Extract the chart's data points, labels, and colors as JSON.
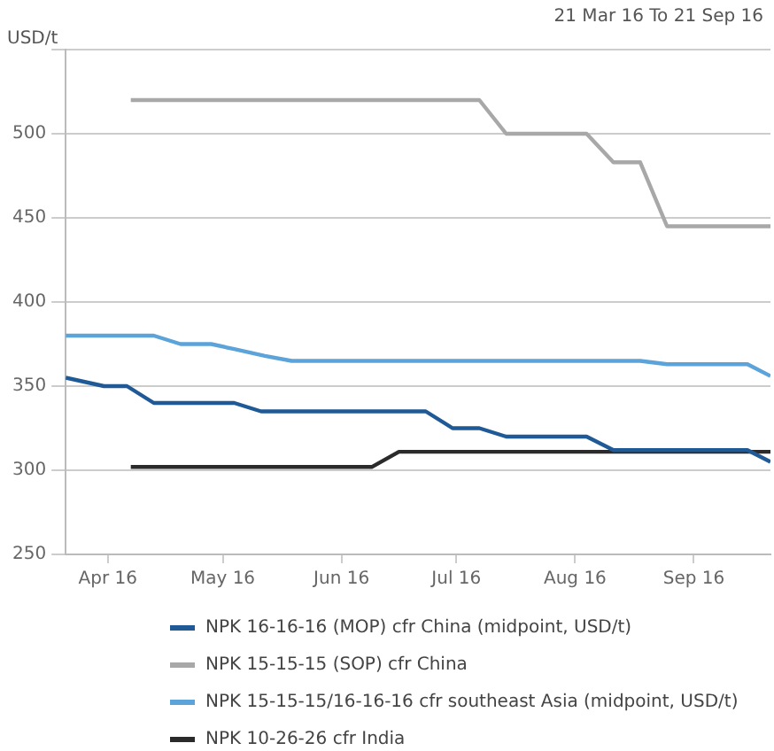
{
  "chart_data": {
    "type": "line",
    "subtitle": "21 Mar 16 To 21 Sep 16",
    "ylabel": "USD/t",
    "xlim": [
      "2016-03-21",
      "2016-09-21"
    ],
    "xticks": [
      {
        "value": "2016-04-01",
        "label": "Apr 16"
      },
      {
        "value": "2016-05-01",
        "label": "May 16"
      },
      {
        "value": "2016-06-01",
        "label": "Jun 16"
      },
      {
        "value": "2016-07-01",
        "label": "Jul 16"
      },
      {
        "value": "2016-08-01",
        "label": "Aug 16"
      },
      {
        "value": "2016-09-01",
        "label": "Sep 16"
      }
    ],
    "ylim": [
      250,
      550
    ],
    "yticks": [
      250,
      300,
      350,
      400,
      450,
      500,
      {
        "value": 550,
        "label": null
      }
    ],
    "grid": "y",
    "legend": "bottom",
    "marker": "none",
    "line_style": "solid",
    "series": [
      {
        "name": "NPK 16-16-16 (MOP) cfr China (midpoint, USD/t)",
        "color": "#1f5a96",
        "x": [
          "2016-03-21",
          "2016-03-31",
          "2016-04-06",
          "2016-04-13",
          "2016-05-04",
          "2016-05-11",
          "2016-06-23",
          "2016-06-30",
          "2016-07-07",
          "2016-07-14",
          "2016-08-04",
          "2016-08-11",
          "2016-09-15",
          "2016-09-21"
        ],
        "values": [
          355,
          350,
          350,
          340,
          340,
          335,
          335,
          325,
          325,
          320,
          320,
          312,
          312,
          305
        ]
      },
      {
        "name": "NPK 15-15-15 (SOP) cfr China",
        "color": "#a8a8a8",
        "x": [
          "2016-04-07",
          "2016-07-07",
          "2016-07-14",
          "2016-08-04",
          "2016-08-11",
          "2016-08-18",
          "2016-08-25",
          "2016-09-21"
        ],
        "values": [
          520,
          520,
          500,
          500,
          483,
          483,
          445,
          445
        ]
      },
      {
        "name": "NPK 15-15-15/16-16-16 cfr southeast Asia (midpoint, USD/t)",
        "color": "#5ba3d9",
        "x": [
          "2016-03-21",
          "2016-04-13",
          "2016-04-20",
          "2016-04-28",
          "2016-05-04",
          "2016-05-12",
          "2016-05-19",
          "2016-08-18",
          "2016-08-25",
          "2016-09-15",
          "2016-09-21"
        ],
        "values": [
          380,
          380,
          375,
          375,
          372,
          368,
          365,
          365,
          363,
          363,
          356
        ]
      },
      {
        "name": "NPK 10-26-26 cfr India",
        "color": "#2b2b2b",
        "x": [
          "2016-04-07",
          "2016-06-09",
          "2016-06-16",
          "2016-09-21"
        ],
        "values": [
          302,
          302,
          311,
          311
        ]
      }
    ]
  }
}
